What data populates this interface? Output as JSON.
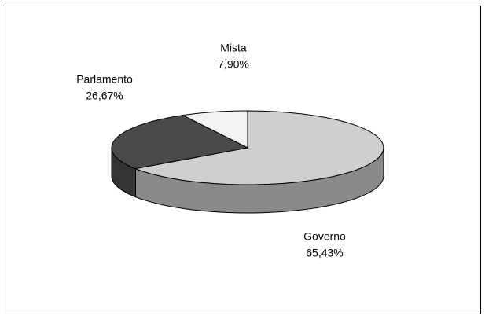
{
  "chart_data": {
    "type": "pie",
    "categories": [
      "Governo",
      "Parlamento",
      "Mista"
    ],
    "values": [
      65.43,
      26.67,
      7.9
    ],
    "value_labels": [
      "65,43%",
      "26,67%",
      "7,90%"
    ],
    "colors": [
      "#cfcfcf",
      "#4a4a4a",
      "#f2f2f2"
    ],
    "side_colors": [
      "#8a8a8a",
      "#333333",
      "#bdbdbd"
    ]
  }
}
